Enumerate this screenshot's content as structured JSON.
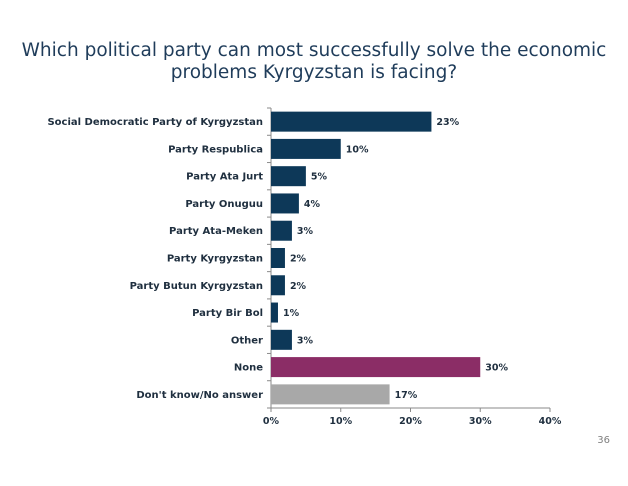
{
  "slide": {
    "title_line1": "Which political party can most successfully solve the economic",
    "title_line2": "problems Kyrgyzstan is facing?",
    "page_number": "36"
  },
  "colors": {
    "party_bar": "#0d3858",
    "none_bar": "#8b2d66",
    "dont_know_bar": "#a8a8a8",
    "axis": "#8a8a8a",
    "title": "#1f3c5a"
  },
  "chart_data": {
    "type": "bar",
    "orientation": "horizontal",
    "title": "Which political party can most successfully solve the economic problems Kyrgyzstan is facing?",
    "categories": [
      "Social Democratic Party of Kyrgyzstan",
      "Party Respublica",
      "Party Ata Jurt",
      "Party Onuguu",
      "Party Ata-Meken",
      "Party Kyrgyzstan",
      "Party Butun Kyrgyzstan",
      "Party Bir Bol",
      "Other",
      "None",
      "Don't know/No answer"
    ],
    "values": [
      23,
      10,
      5,
      4,
      3,
      2,
      2,
      1,
      3,
      30,
      17
    ],
    "value_labels": [
      "23%",
      "10%",
      "5%",
      "4%",
      "3%",
      "2%",
      "2%",
      "1%",
      "3%",
      "30%",
      "17%"
    ],
    "bar_color_keys": [
      "party_bar",
      "party_bar",
      "party_bar",
      "party_bar",
      "party_bar",
      "party_bar",
      "party_bar",
      "party_bar",
      "party_bar",
      "none_bar",
      "dont_know_bar"
    ],
    "xlim": [
      0,
      40
    ],
    "x_ticks": [
      0,
      10,
      20,
      30,
      40
    ],
    "x_tick_labels": [
      "0%",
      "10%",
      "20%",
      "30%",
      "40%"
    ],
    "xlabel": "",
    "ylabel": "",
    "grid": false,
    "legend": "none"
  }
}
